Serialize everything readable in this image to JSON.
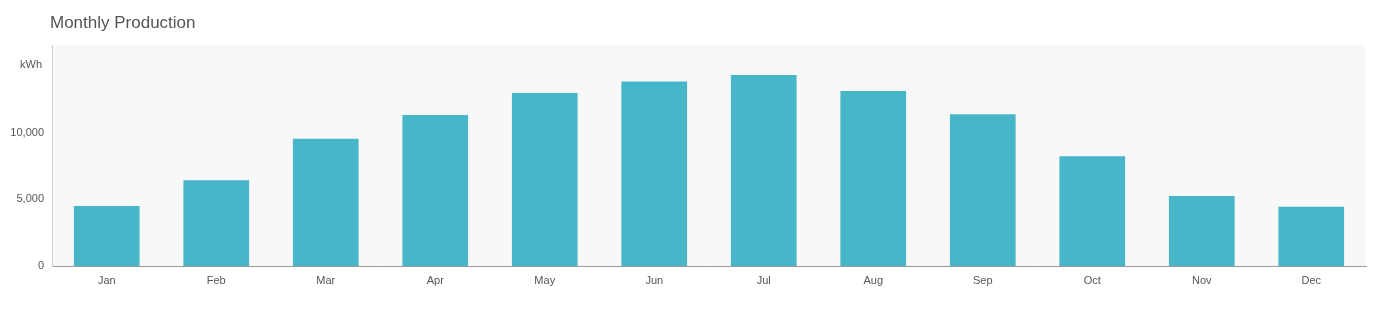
{
  "chart_data": {
    "type": "bar",
    "title": "Monthly Production",
    "y_label": "kWh",
    "categories": [
      "Jan",
      "Feb",
      "Mar",
      "Apr",
      "May",
      "Jun",
      "Jul",
      "Aug",
      "Sep",
      "Oct",
      "Nov",
      "Dec"
    ],
    "values": [
      4500,
      6450,
      9550,
      11350,
      13000,
      13850,
      14350,
      13150,
      11400,
      8250,
      5250,
      4450
    ],
    "color": "#46b6c8",
    "ylim": [
      0,
      16600
    ],
    "yticks": [
      0,
      {
        "value": 5000,
        "label": "5,000"
      },
      {
        "value": 10000,
        "label": "10,000"
      }
    ],
    "grid": false
  }
}
